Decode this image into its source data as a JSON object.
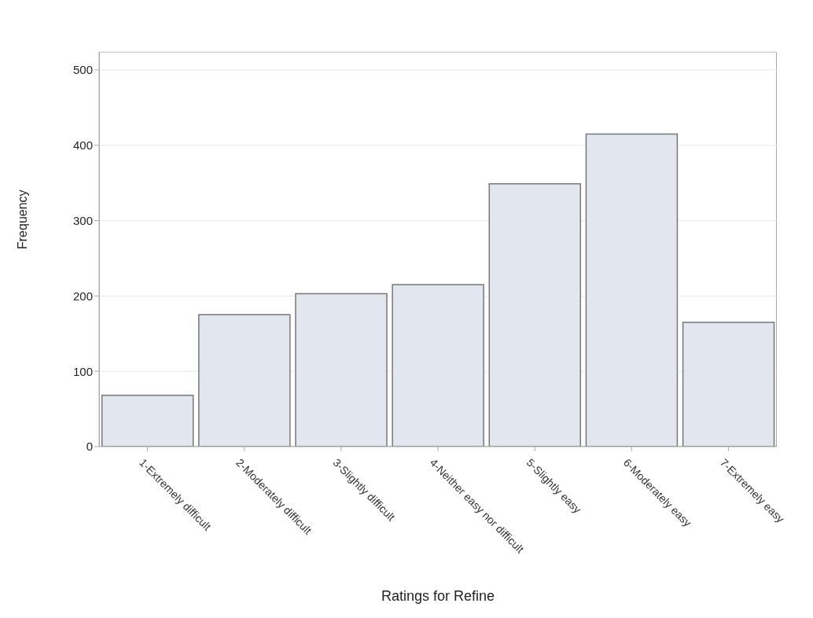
{
  "chart_data": {
    "type": "bar",
    "xlabel": "Ratings for Refine",
    "ylabel": "Frequency",
    "categories": [
      "1-Extremely difficult",
      "2-Moderately difficult",
      "3-Slightly difficult",
      "4-Neither easy nor difficult",
      "5-Slightly easy",
      "6-Moderately easy",
      "7-Extremely easy"
    ],
    "values": [
      68,
      175,
      203,
      215,
      349,
      415,
      165
    ],
    "color": "#e1e6ef",
    "ylim": [
      0,
      524
    ],
    "yticks": [
      0,
      100,
      200,
      300,
      400,
      500
    ],
    "grid": "y"
  }
}
